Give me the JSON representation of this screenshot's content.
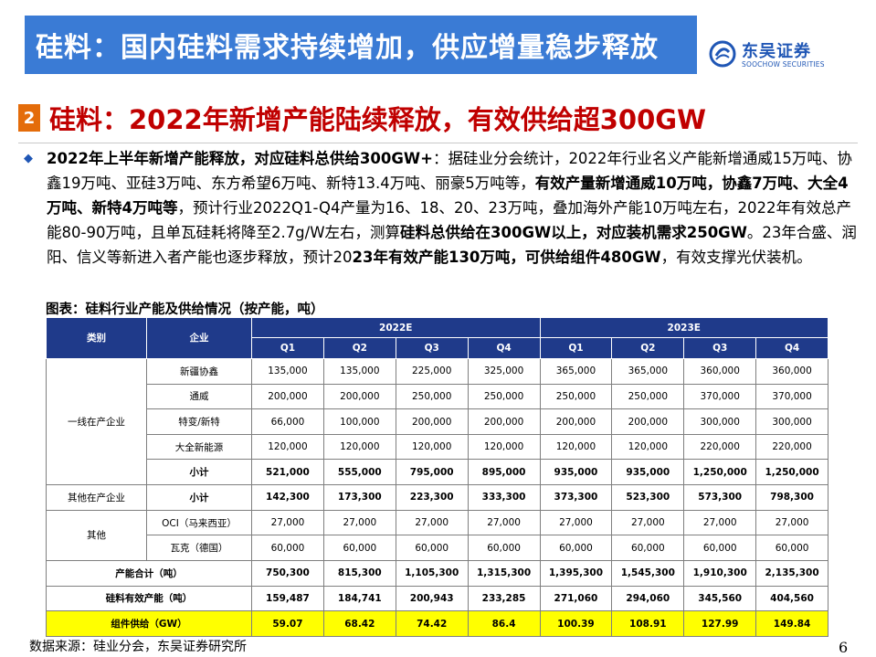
{
  "header": {
    "title": "硅料：国内硅料需求持续增加，供应增量稳步释放",
    "logo_cn": "东吴证券",
    "logo_en": "SOOCHOW SECURITIES",
    "accent_color": "#3a7bd5"
  },
  "section": {
    "number": "2",
    "title": "硅料：2022年新增产能陆续释放，有效供给超300GW"
  },
  "paragraph": {
    "p1": "2022年上半年新增产能释放，对应硅料总供给300GW+",
    "p2": "：据硅业分会统计，2022年行业名义产能新增通威15万吨、协鑫19万吨、亚硅3万吨、东方希望6万吨、新特13.4万吨、丽豪5万吨等，",
    "p3": "有效产量新增通威10万吨，协鑫7万吨、大全4万吨、新特4万吨等",
    "p4": "，预计行业2022Q1-Q4产量为16、18、20、23万吨，叠加海外产能10万吨左右，2022年有效总产能80-90万吨，且单瓦硅耗将降至2.7g/W左右，测算",
    "p5": "硅料总供给在300GW以上，对应装机需求250GW",
    "p6": "。23年合盛、润阳、信义等新进入者产能也逐步释放，预计20",
    "p7": "23年有效产能130万吨，可供给组件480GW",
    "p8": "，有效支撑光伏装机。"
  },
  "table_caption": "图表：硅料行业产能及供给情况（按产能，吨）",
  "table": {
    "col_category": "类别",
    "col_company": "企业",
    "year1": "2022E",
    "year2": "2023E",
    "quarters": [
      "Q1",
      "Q2",
      "Q3",
      "Q4",
      "Q1",
      "Q2",
      "Q3",
      "Q4"
    ],
    "groups": {
      "g1": "一线在产企业",
      "g2": "其他在产企业",
      "g3": "其他"
    },
    "rows": [
      {
        "company": "新疆协鑫",
        "values": [
          "135,000",
          "135,000",
          "225,000",
          "325,000",
          "365,000",
          "365,000",
          "360,000",
          "360,000"
        ]
      },
      {
        "company": "通威",
        "values": [
          "200,000",
          "200,000",
          "250,000",
          "250,000",
          "250,000",
          "250,000",
          "370,000",
          "370,000"
        ]
      },
      {
        "company": "特变/新特",
        "values": [
          "66,000",
          "100,000",
          "200,000",
          "200,000",
          "200,000",
          "200,000",
          "300,000",
          "300,000"
        ]
      },
      {
        "company": "大全新能源",
        "values": [
          "120,000",
          "120,000",
          "120,000",
          "120,000",
          "120,000",
          "120,000",
          "220,000",
          "220,000"
        ]
      },
      {
        "company": "小计",
        "values": [
          "521,000",
          "555,000",
          "795,000",
          "895,000",
          "935,000",
          "935,000",
          "1,250,000",
          "1,250,000"
        ]
      },
      {
        "company": "小计",
        "values": [
          "142,300",
          "173,300",
          "223,300",
          "333,300",
          "373,300",
          "523,300",
          "573,300",
          "798,300"
        ]
      },
      {
        "company": "OCI（马来西亚）",
        "values": [
          "27,000",
          "27,000",
          "27,000",
          "27,000",
          "27,000",
          "27,000",
          "27,000",
          "27,000"
        ]
      },
      {
        "company": "瓦克（德国）",
        "values": [
          "60,000",
          "60,000",
          "60,000",
          "60,000",
          "60,000",
          "60,000",
          "60,000",
          "60,000"
        ]
      }
    ],
    "totals": [
      {
        "label": "产能合计（吨）",
        "values": [
          "750,300",
          "815,300",
          "1,105,300",
          "1,315,300",
          "1,395,300",
          "1,545,300",
          "1,910,300",
          "2,135,300"
        ]
      },
      {
        "label": "硅料有效产能（吨）",
        "values": [
          "159,487",
          "184,741",
          "200,943",
          "233,285",
          "271,060",
          "294,060",
          "345,560",
          "404,560"
        ]
      },
      {
        "label": "组件供给（GW）",
        "values": [
          "59.07",
          "68.42",
          "74.42",
          "86.4",
          "100.39",
          "108.91",
          "127.99",
          "149.84"
        ]
      }
    ]
  },
  "footer": {
    "source": "数据来源：硅业分会，东吴证券研究所",
    "page": "6"
  }
}
